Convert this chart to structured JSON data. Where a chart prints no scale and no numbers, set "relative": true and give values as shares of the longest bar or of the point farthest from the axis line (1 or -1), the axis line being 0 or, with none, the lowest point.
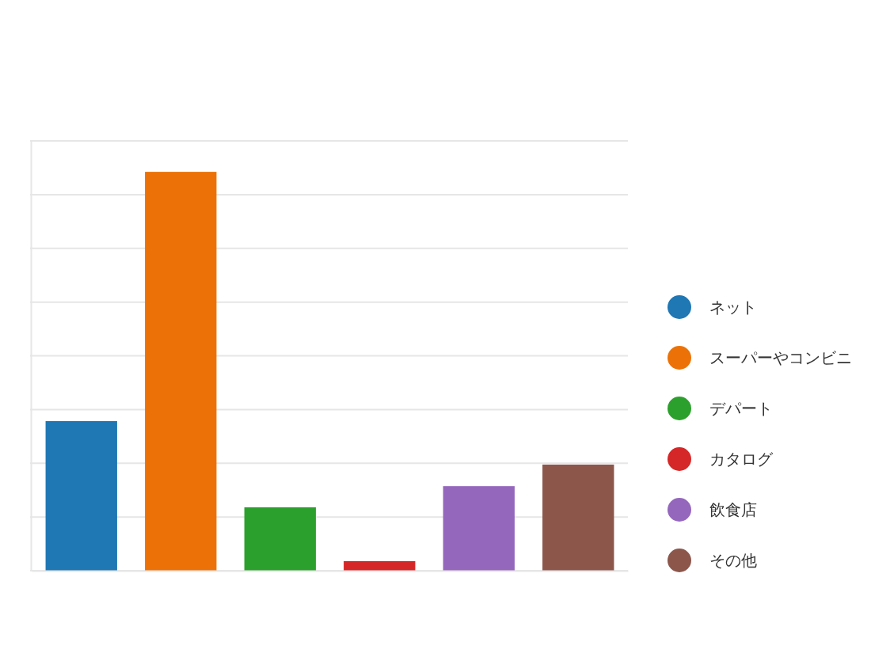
{
  "chart_data": {
    "type": "bar",
    "relative": true,
    "stacked": true,
    "grid": "y",
    "legend": "right",
    "categories": [
      null,
      null,
      null,
      null,
      null,
      null
    ],
    "series": [
      {
        "name": "ネット",
        "color": "#1f77b4",
        "values": [
          0.375,
          null,
          null,
          null,
          null,
          null
        ]
      },
      {
        "name": "スーパーやコンビニ",
        "color": "#ec7207",
        "values": [
          null,
          1,
          null,
          null,
          null,
          null
        ]
      },
      {
        "name": "デパート",
        "color": "#2ca02c",
        "values": [
          null,
          null,
          0.159,
          null,
          null,
          null
        ]
      },
      {
        "name": "カタログ",
        "color": "#d62728",
        "values": [
          null,
          null,
          null,
          0.024,
          null,
          null
        ]
      },
      {
        "name": "飲食店",
        "color": "#9467bd",
        "values": [
          null,
          null,
          null,
          null,
          0.212,
          null
        ]
      },
      {
        "name": "その他",
        "color": "#8c564b",
        "values": [
          null,
          null,
          null,
          null,
          null,
          0.266
        ]
      }
    ]
  }
}
